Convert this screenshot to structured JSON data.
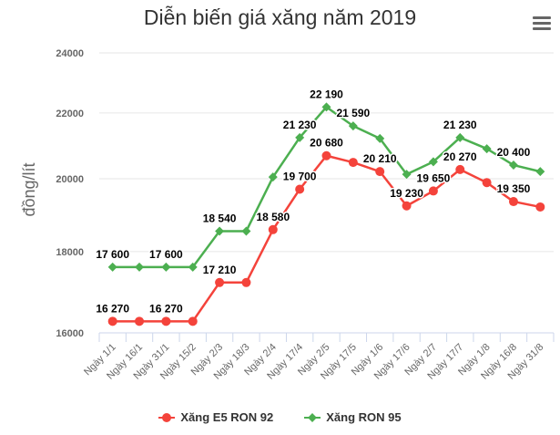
{
  "title": "Diễn biến giá xăng năm 2019",
  "menu": {
    "icon": "hamburger-menu-icon"
  },
  "colors": {
    "e5": "#f4433b",
    "ron95": "#4caf50",
    "grid": "#e6e6e6",
    "axis": "#ccd6eb",
    "text": "#333333",
    "tick_text": "#666666"
  },
  "chart_data": {
    "type": "line",
    "title": "Diễn biến giá xăng năm 2019",
    "xlabel": "",
    "ylabel": "đồng/lít",
    "yscale": "log",
    "ylim": [
      16000,
      24000
    ],
    "yticks": [
      16000,
      18000,
      20000,
      22000,
      24000
    ],
    "grid": true,
    "legend_position": "bottom",
    "categories": [
      "Ngày 1/1",
      "Ngày 16/1",
      "Ngày 31/1",
      "Ngày 15/2",
      "Ngày 2/3",
      "Ngày 18/3",
      "Ngày 2/4",
      "Ngày 17/4",
      "Ngày 2/5",
      "Ngày 17/5",
      "Ngày 1/6",
      "Ngày 17/6",
      "Ngày 2/7",
      "Ngày 17/7",
      "Ngày 1/8",
      "Ngày 16/8",
      "Ngày 31/8"
    ],
    "series": [
      {
        "name": "Xăng E5 RON 92",
        "color": "#f4433b",
        "marker": "circle",
        "values": [
          16270,
          16270,
          16270,
          16270,
          17210,
          17210,
          18580,
          19700,
          20680,
          20480,
          20210,
          19230,
          19650,
          20270,
          19890,
          19350,
          19200
        ],
        "labels": [
          "16 270",
          "",
          "16 270",
          "",
          "17 210",
          "",
          "18 580",
          "19 700",
          "20 680",
          "",
          "20 210",
          "19 230",
          "19 650",
          "20 270",
          "",
          "19 350",
          ""
        ]
      },
      {
        "name": "Xăng RON 95",
        "color": "#4caf50",
        "marker": "diamond",
        "values": [
          17600,
          17600,
          17600,
          17600,
          18540,
          18540,
          20050,
          21230,
          22190,
          21590,
          21200,
          20130,
          20500,
          21230,
          20890,
          20400,
          20210
        ],
        "labels": [
          "17 600",
          "",
          "17 600",
          "",
          "18 540",
          "",
          "",
          "21 230",
          "22 190",
          "21 590",
          "",
          "",
          "",
          "21 230",
          "",
          "20 400",
          ""
        ]
      }
    ]
  },
  "legend": [
    {
      "label": "Xăng E5 RON 92",
      "color": "#f4433b",
      "marker": "circle"
    },
    {
      "label": "Xăng RON 95",
      "color": "#4caf50",
      "marker": "diamond"
    }
  ]
}
